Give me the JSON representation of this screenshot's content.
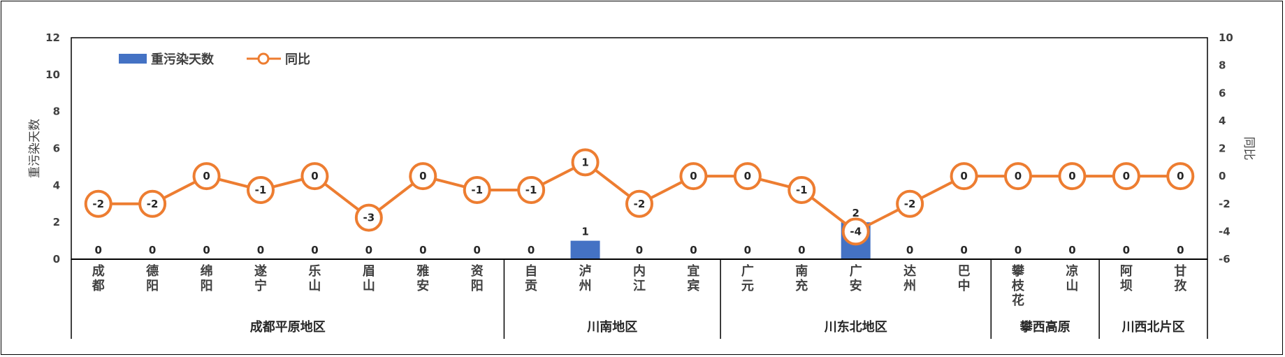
{
  "chart_data": {
    "type": "bar+line",
    "categories": [
      "成都",
      "德阳",
      "绵阳",
      "遂宁",
      "乐山",
      "眉山",
      "雅安",
      "资阳",
      "自贡",
      "泸州",
      "内江",
      "宜宾",
      "广元",
      "南充",
      "广安",
      "达州",
      "巴中",
      "攀枝花",
      "凉山",
      "阿坝",
      "甘孜"
    ],
    "regions": [
      {
        "name": "成都平原地区",
        "count": 8
      },
      {
        "name": "川南地区",
        "count": 4
      },
      {
        "name": "川东北地区",
        "count": 5
      },
      {
        "name": "攀西高原",
        "count": 2
      },
      {
        "name": "川西北片区",
        "count": 2
      }
    ],
    "series": [
      {
        "name": "重污染天数",
        "type": "bar",
        "axis": "left",
        "color": "#4472C4",
        "values": [
          0,
          0,
          0,
          0,
          0,
          0,
          0,
          0,
          0,
          1,
          0,
          0,
          0,
          0,
          2,
          0,
          0,
          0,
          0,
          0,
          0
        ]
      },
      {
        "name": "同比",
        "type": "line",
        "axis": "right",
        "color": "#ED7D31",
        "values": [
          -2,
          -2,
          0,
          -1,
          0,
          -3,
          0,
          -1,
          -1,
          1,
          -2,
          0,
          0,
          -1,
          -4,
          -2,
          0,
          0,
          0,
          0,
          0
        ]
      }
    ],
    "y_left": {
      "label": "重污染天数",
      "min": 0,
      "max": 12,
      "ticks": [
        "0",
        "2",
        "4",
        "6",
        "8",
        "10",
        "12"
      ]
    },
    "y_right": {
      "label": "同比",
      "min": -6,
      "max": 10,
      "ticks": [
        "-6",
        "-4",
        "-2",
        "0",
        "2",
        "4",
        "6",
        "8",
        "10"
      ]
    },
    "legend": {
      "position": "top-left"
    },
    "grid": false
  }
}
